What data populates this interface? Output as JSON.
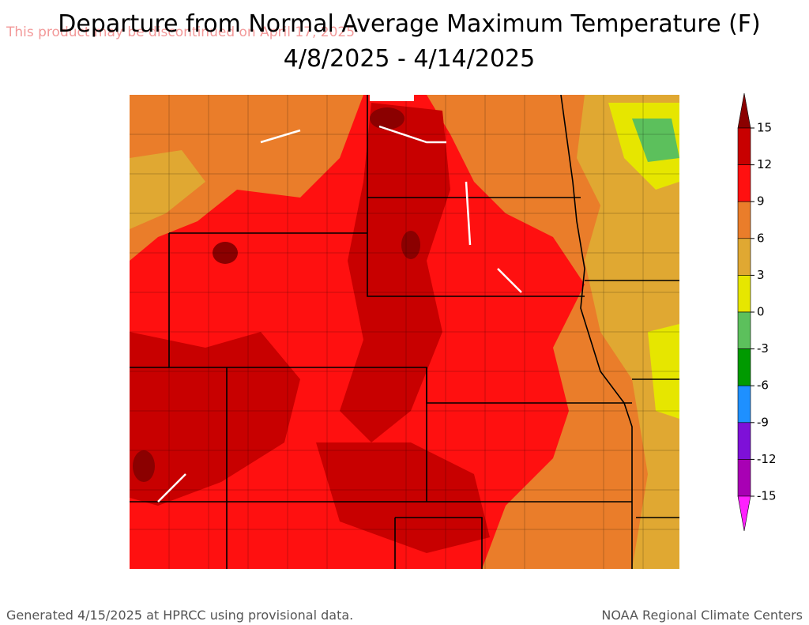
{
  "title": [
    "Departure from Normal Average Maximum Temperature (F)",
    "4/8/2025 - 4/14/2025"
  ],
  "watermark": "This product may be discontinued on April 17, 2025",
  "legend": {
    "ticks": [
      15,
      12,
      9,
      6,
      3,
      0,
      -3,
      -6,
      -9,
      -12,
      -15
    ],
    "colors": [
      "#8b0000",
      "#c80000",
      "#ff1010",
      "#ea7d2a",
      "#e0a832",
      "#e6e600",
      "#5cc05c",
      "#009a00",
      "#1e90ff",
      "#7e10d8",
      "#a800b4",
      "#ff20ff"
    ]
  },
  "footer": {
    "left": "Generated 4/15/2025 at HPRCC using provisional data.",
    "right": "NOAA Regional Climate Centers"
  }
}
